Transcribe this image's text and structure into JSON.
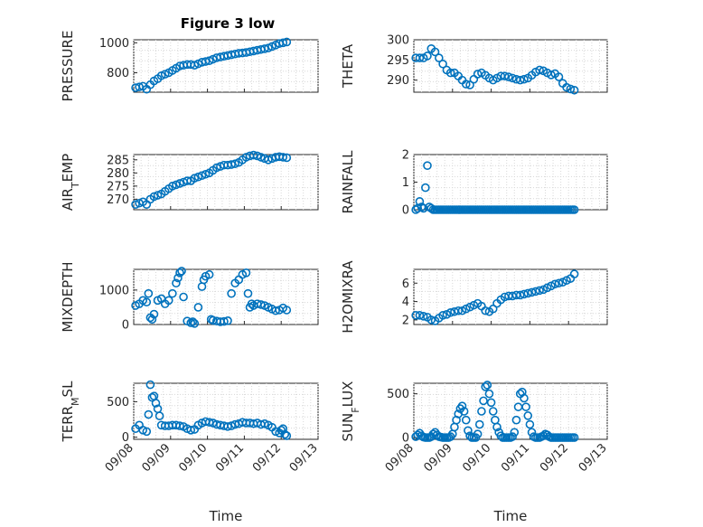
{
  "figure_title": "Figure 3 low",
  "colors": {
    "series": "#0072BD",
    "axis": "#262626",
    "grid": "#d8d8d8"
  },
  "chart_data": [
    {
      "id": "pressure",
      "type": "scatter",
      "title": "Figure 3 low",
      "ylabel": "PRESSURE",
      "ylabel_sub": "",
      "xlim": [
        0,
        5
      ],
      "ylim": [
        670,
        1020
      ],
      "yticks": [
        800,
        1000
      ],
      "yticklabels": [
        "800",
        "1000"
      ],
      "x": [
        0.05,
        0.15,
        0.25,
        0.35,
        0.45,
        0.55,
        0.65,
        0.75,
        0.85,
        0.95,
        1.05,
        1.15,
        1.25,
        1.35,
        1.45,
        1.55,
        1.65,
        1.75,
        1.85,
        1.95,
        2.05,
        2.15,
        2.25,
        2.35,
        2.45,
        2.55,
        2.65,
        2.75,
        2.85,
        2.95,
        3.05,
        3.15,
        3.25,
        3.35,
        3.45,
        3.55,
        3.65,
        3.75,
        3.85,
        3.95,
        4.05,
        4.15
      ],
      "y": [
        700,
        705,
        710,
        690,
        720,
        745,
        760,
        780,
        790,
        800,
        815,
        830,
        845,
        850,
        855,
        855,
        850,
        860,
        870,
        875,
        880,
        890,
        900,
        905,
        910,
        915,
        920,
        925,
        930,
        932,
        935,
        940,
        945,
        950,
        955,
        960,
        965,
        975,
        985,
        995,
        1000,
        1005
      ]
    },
    {
      "id": "theta",
      "type": "scatter",
      "title": "",
      "ylabel": "THETA",
      "ylabel_sub": "",
      "xlim": [
        0,
        5
      ],
      "ylim": [
        287,
        300
      ],
      "yticks": [
        290,
        295,
        300
      ],
      "yticklabels": [
        "290",
        "295",
        "300"
      ],
      "x": [
        0.05,
        0.15,
        0.25,
        0.35,
        0.45,
        0.55,
        0.65,
        0.75,
        0.85,
        0.95,
        1.05,
        1.15,
        1.25,
        1.35,
        1.45,
        1.55,
        1.65,
        1.75,
        1.85,
        1.95,
        2.05,
        2.15,
        2.25,
        2.35,
        2.45,
        2.55,
        2.65,
        2.75,
        2.85,
        2.95,
        3.05,
        3.15,
        3.25,
        3.35,
        3.45,
        3.55,
        3.65,
        3.75,
        3.85,
        3.95,
        4.05,
        4.15
      ],
      "y": [
        295.5,
        295.5,
        295.5,
        296,
        297.8,
        297,
        295.5,
        294,
        292.5,
        291.8,
        291.8,
        291,
        290,
        289,
        288.8,
        290.2,
        291.5,
        291.8,
        291.2,
        290.5,
        290,
        290.5,
        291,
        291,
        290.8,
        290.5,
        290.2,
        290,
        290.2,
        290.5,
        291.2,
        292,
        292.5,
        292.3,
        291.8,
        291.3,
        291.6,
        290.8,
        289.2,
        288.2,
        287.8,
        287.5
      ]
    },
    {
      "id": "air_temp",
      "type": "scatter",
      "title": "",
      "ylabel": "AIR_TEMP",
      "ylabel_sub": "T",
      "xlim": [
        0,
        5
      ],
      "ylim": [
        266,
        287
      ],
      "yticks": [
        270,
        275,
        280,
        285
      ],
      "yticklabels": [
        "270",
        "275",
        "280",
        "285"
      ],
      "x": [
        0.05,
        0.15,
        0.25,
        0.35,
        0.45,
        0.55,
        0.65,
        0.75,
        0.85,
        0.95,
        1.05,
        1.15,
        1.25,
        1.35,
        1.45,
        1.55,
        1.65,
        1.75,
        1.85,
        1.95,
        2.05,
        2.15,
        2.25,
        2.35,
        2.45,
        2.55,
        2.65,
        2.75,
        2.85,
        2.95,
        3.05,
        3.15,
        3.25,
        3.35,
        3.45,
        3.55,
        3.65,
        3.75,
        3.85,
        3.95,
        4.05,
        4.15
      ],
      "y": [
        268,
        268.5,
        269,
        268,
        270,
        271,
        271.5,
        272,
        273,
        274,
        275,
        275.5,
        276,
        276.5,
        277,
        277,
        278,
        278.5,
        279,
        279.5,
        280,
        281,
        282,
        282.5,
        283,
        283,
        283.2,
        283.5,
        284,
        285,
        286,
        286.5,
        286.8,
        286.5,
        286,
        285.5,
        285,
        285.5,
        286,
        286.2,
        286,
        285.8
      ]
    },
    {
      "id": "rainfall",
      "type": "scatter",
      "title": "",
      "ylabel": "RAINFALL",
      "ylabel_sub": "",
      "xlim": [
        0,
        5
      ],
      "ylim": [
        0,
        2
      ],
      "yticks": [
        0,
        1,
        2
      ],
      "yticklabels": [
        "0",
        "1",
        "2"
      ],
      "x": [
        0.05,
        0.1,
        0.15,
        0.2,
        0.25,
        0.3,
        0.35,
        0.4,
        0.45,
        0.5,
        0.55,
        0.6,
        0.65,
        0.7,
        0.75,
        0.8,
        0.85,
        0.9,
        0.95,
        1.0,
        1.05,
        1.1,
        1.15,
        1.2,
        1.25,
        1.3,
        1.35,
        1.4,
        1.45,
        1.5,
        1.55,
        1.6,
        1.65,
        1.7,
        1.75,
        1.8,
        1.85,
        1.9,
        1.95,
        2.0,
        2.05,
        2.1,
        2.15,
        2.2,
        2.25,
        2.3,
        2.35,
        2.4,
        2.45,
        2.5,
        2.55,
        2.6,
        2.65,
        2.7,
        2.75,
        2.8,
        2.85,
        2.9,
        2.95,
        3.0,
        3.05,
        3.1,
        3.15,
        3.2,
        3.25,
        3.3,
        3.35,
        3.4,
        3.45,
        3.5,
        3.55,
        3.6,
        3.65,
        3.7,
        3.75,
        3.8,
        3.85,
        3.9,
        3.95,
        4.0,
        4.05,
        4.1,
        4.15
      ],
      "y": [
        0,
        0.05,
        0.3,
        0.1,
        0.05,
        0.8,
        1.6,
        0.1,
        0.05,
        0,
        0,
        0,
        0,
        0,
        0,
        0,
        0,
        0,
        0,
        0,
        0,
        0,
        0,
        0,
        0,
        0,
        0,
        0,
        0,
        0,
        0,
        0,
        0,
        0,
        0,
        0,
        0,
        0,
        0,
        0,
        0,
        0,
        0,
        0,
        0,
        0,
        0,
        0,
        0,
        0,
        0,
        0,
        0,
        0,
        0,
        0,
        0,
        0,
        0,
        0,
        0,
        0,
        0,
        0,
        0,
        0,
        0,
        0,
        0,
        0,
        0,
        0,
        0,
        0,
        0,
        0,
        0,
        0,
        0,
        0,
        0,
        0,
        0
      ]
    },
    {
      "id": "mixdepth",
      "type": "scatter",
      "title": "",
      "ylabel": "MIXDEPTH",
      "ylabel_sub": "",
      "xlim": [
        0,
        5
      ],
      "ylim": [
        0,
        1600
      ],
      "yticks": [
        0,
        1000
      ],
      "yticklabels": [
        "0",
        "1000"
      ],
      "x": [
        0.05,
        0.15,
        0.25,
        0.35,
        0.4,
        0.45,
        0.5,
        0.55,
        0.65,
        0.75,
        0.85,
        0.95,
        1.05,
        1.15,
        1.2,
        1.25,
        1.3,
        1.35,
        1.45,
        1.55,
        1.6,
        1.65,
        1.75,
        1.85,
        1.9,
        1.95,
        2.05,
        2.1,
        2.15,
        2.25,
        2.35,
        2.45,
        2.55,
        2.65,
        2.75,
        2.85,
        2.95,
        3.05,
        3.1,
        3.15,
        3.2,
        3.25,
        3.35,
        3.45,
        3.55,
        3.65,
        3.75,
        3.85,
        3.95,
        4.05,
        4.15
      ],
      "y": [
        550,
        600,
        700,
        650,
        900,
        200,
        150,
        300,
        700,
        750,
        600,
        700,
        900,
        1200,
        1350,
        1500,
        1550,
        800,
        100,
        50,
        80,
        30,
        500,
        1100,
        1300,
        1400,
        1450,
        150,
        120,
        100,
        80,
        90,
        110,
        900,
        1200,
        1300,
        1450,
        1500,
        900,
        500,
        600,
        550,
        600,
        580,
        550,
        500,
        450,
        400,
        420,
        480,
        420
      ]
    },
    {
      "id": "h2omixra",
      "type": "scatter",
      "title": "",
      "ylabel": "H2OMIXRA",
      "ylabel_sub": "",
      "xlim": [
        0,
        5
      ],
      "ylim": [
        1.5,
        7.5
      ],
      "yticks": [
        2,
        4,
        6
      ],
      "yticklabels": [
        "2",
        "4",
        "6"
      ],
      "x": [
        0.05,
        0.15,
        0.25,
        0.35,
        0.45,
        0.55,
        0.65,
        0.75,
        0.85,
        0.95,
        1.05,
        1.15,
        1.25,
        1.35,
        1.45,
        1.55,
        1.65,
        1.75,
        1.85,
        1.95,
        2.05,
        2.15,
        2.25,
        2.35,
        2.45,
        2.55,
        2.65,
        2.75,
        2.85,
        2.95,
        3.05,
        3.15,
        3.25,
        3.35,
        3.45,
        3.55,
        3.65,
        3.75,
        3.85,
        3.95,
        4.05,
        4.15
      ],
      "y": [
        2.5,
        2.5,
        2.4,
        2.3,
        2,
        1.9,
        2.2,
        2.5,
        2.6,
        2.8,
        2.9,
        3,
        3,
        3.2,
        3.4,
        3.6,
        3.8,
        3.5,
        3,
        2.9,
        3.2,
        3.8,
        4.2,
        4.5,
        4.6,
        4.6,
        4.7,
        4.7,
        4.8,
        4.9,
        5,
        5.1,
        5.2,
        5.3,
        5.5,
        5.7,
        5.9,
        6,
        6.1,
        6.3,
        6.5,
        7
      ]
    },
    {
      "id": "terr_msl",
      "type": "scatter",
      "title": "",
      "ylabel": "TERR_MSL",
      "ylabel_sub": "M",
      "xlim": [
        0,
        5
      ],
      "ylim": [
        -30,
        760
      ],
      "yticks": [
        0,
        500
      ],
      "yticklabels": [
        "0",
        "500"
      ],
      "x": [
        0.05,
        0.15,
        0.25,
        0.35,
        0.4,
        0.45,
        0.5,
        0.55,
        0.6,
        0.65,
        0.7,
        0.75,
        0.85,
        0.95,
        1.05,
        1.15,
        1.25,
        1.35,
        1.45,
        1.55,
        1.65,
        1.75,
        1.85,
        1.95,
        2.05,
        2.15,
        2.25,
        2.35,
        2.45,
        2.55,
        2.65,
        2.75,
        2.85,
        2.95,
        3.05,
        3.15,
        3.25,
        3.35,
        3.45,
        3.55,
        3.65,
        3.75,
        3.85,
        3.95,
        4.0,
        4.05,
        4.1,
        4.15
      ],
      "y": [
        120,
        170,
        100,
        80,
        320,
        740,
        560,
        580,
        480,
        400,
        300,
        170,
        160,
        160,
        170,
        170,
        160,
        150,
        120,
        100,
        110,
        170,
        200,
        220,
        210,
        200,
        180,
        170,
        160,
        150,
        160,
        180,
        190,
        210,
        200,
        200,
        190,
        200,
        180,
        190,
        170,
        140,
        80,
        60,
        100,
        120,
        40,
        20
      ]
    },
    {
      "id": "sun_flux",
      "type": "scatter",
      "title": "",
      "ylabel": "SUN_FLUX",
      "ylabel_sub": "F",
      "xlim": [
        0,
        5
      ],
      "ylim": [
        -20,
        620
      ],
      "yticks": [
        0,
        500
      ],
      "yticklabels": [
        "0",
        "500"
      ],
      "x": [
        0.05,
        0.1,
        0.15,
        0.2,
        0.25,
        0.3,
        0.35,
        0.4,
        0.45,
        0.5,
        0.55,
        0.6,
        0.65,
        0.7,
        0.75,
        0.8,
        0.85,
        0.9,
        0.95,
        1.0,
        1.05,
        1.1,
        1.15,
        1.2,
        1.25,
        1.3,
        1.35,
        1.4,
        1.45,
        1.5,
        1.55,
        1.6,
        1.65,
        1.7,
        1.75,
        1.8,
        1.85,
        1.9,
        1.95,
        2.0,
        2.05,
        2.1,
        2.15,
        2.2,
        2.25,
        2.3,
        2.35,
        2.4,
        2.45,
        2.5,
        2.55,
        2.6,
        2.65,
        2.7,
        2.75,
        2.8,
        2.85,
        2.9,
        2.95,
        3.0,
        3.05,
        3.1,
        3.15,
        3.2,
        3.25,
        3.3,
        3.35,
        3.4,
        3.45,
        3.5,
        3.55,
        3.6,
        3.65,
        3.7,
        3.75,
        3.8,
        3.85,
        3.9,
        3.95,
        4.0,
        4.05,
        4.1,
        4.15
      ],
      "y": [
        10,
        30,
        50,
        20,
        5,
        0,
        0,
        0,
        10,
        40,
        60,
        30,
        10,
        5,
        0,
        0,
        0,
        0,
        10,
        40,
        120,
        200,
        270,
        330,
        360,
        300,
        200,
        80,
        20,
        0,
        0,
        0,
        40,
        150,
        300,
        420,
        580,
        600,
        500,
        400,
        300,
        200,
        120,
        60,
        20,
        0,
        0,
        0,
        0,
        0,
        10,
        60,
        200,
        350,
        500,
        520,
        450,
        350,
        250,
        150,
        60,
        10,
        0,
        0,
        0,
        10,
        20,
        40,
        30,
        10,
        0,
        0,
        0,
        0,
        0,
        0,
        0,
        0,
        0,
        0,
        0,
        0,
        0
      ]
    }
  ],
  "x_axis": {
    "ticks": [
      0,
      1,
      2,
      3,
      4,
      5
    ],
    "ticklabels": [
      "09/08",
      "09/09",
      "09/10",
      "09/11",
      "09/12",
      "09/13"
    ],
    "label": "Time"
  }
}
